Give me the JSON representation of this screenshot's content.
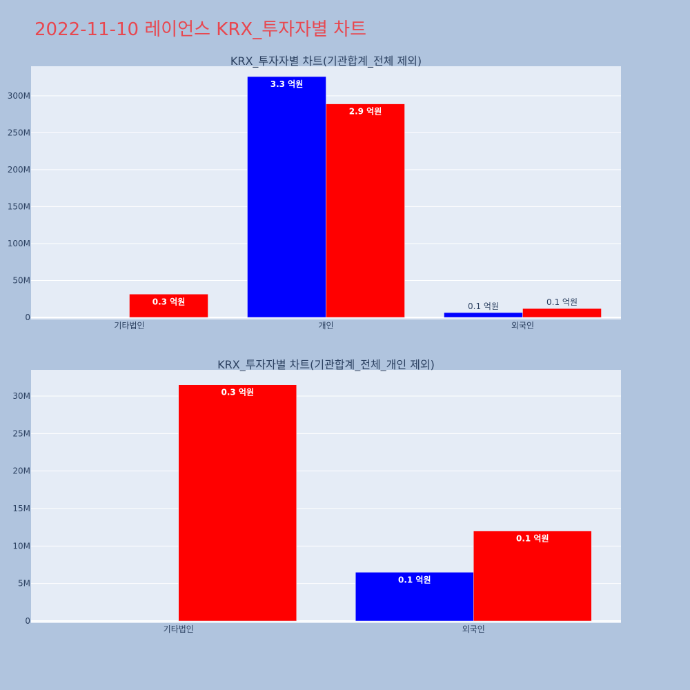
{
  "page": {
    "title": "2022-11-10 레이언스 KRX_투자자별 차트"
  },
  "colors": {
    "background": "#b0c4de",
    "plot_bg": "#e5ecf6",
    "title": "#e8474f",
    "series_a": "#0000ff",
    "series_b": "#ff0000"
  },
  "chart_data": [
    {
      "type": "bar",
      "title": "KRX_투자자별 차트(기관합계_전체 제외)",
      "categories": [
        "기타법인",
        "개인",
        "외국인"
      ],
      "series": [
        {
          "color": "#0000ff",
          "values": [
            0,
            326000000,
            6500000
          ],
          "labels": [
            "",
            "3.3 억원",
            "0.1 억원"
          ]
        },
        {
          "color": "#ff0000",
          "values": [
            31500000,
            289000000,
            12000000
          ],
          "labels": [
            "0.3 억원",
            "2.9 억원",
            "0.1 억원"
          ]
        }
      ],
      "ylim": [
        0,
        340000000
      ],
      "yticks": [
        0,
        50000000,
        100000000,
        150000000,
        200000000,
        250000000,
        300000000
      ],
      "ytick_labels": [
        "0",
        "50M",
        "100M",
        "150M",
        "200M",
        "250M",
        "300M"
      ],
      "grid": true
    },
    {
      "type": "bar",
      "title": "KRX_투자자별 차트(기관합계_전체_개인 제외)",
      "categories": [
        "기타법인",
        "외국인"
      ],
      "series": [
        {
          "color": "#0000ff",
          "values": [
            0,
            6500000
          ],
          "labels": [
            "",
            "0.1 억원"
          ]
        },
        {
          "color": "#ff0000",
          "values": [
            31500000,
            12000000
          ],
          "labels": [
            "0.3 억원",
            "0.1 억원"
          ]
        }
      ],
      "ylim": [
        0,
        33500000
      ],
      "yticks": [
        0,
        5000000,
        10000000,
        15000000,
        20000000,
        25000000,
        30000000
      ],
      "ytick_labels": [
        "0",
        "5M",
        "10M",
        "15M",
        "20M",
        "25M",
        "30M"
      ],
      "grid": true
    }
  ]
}
